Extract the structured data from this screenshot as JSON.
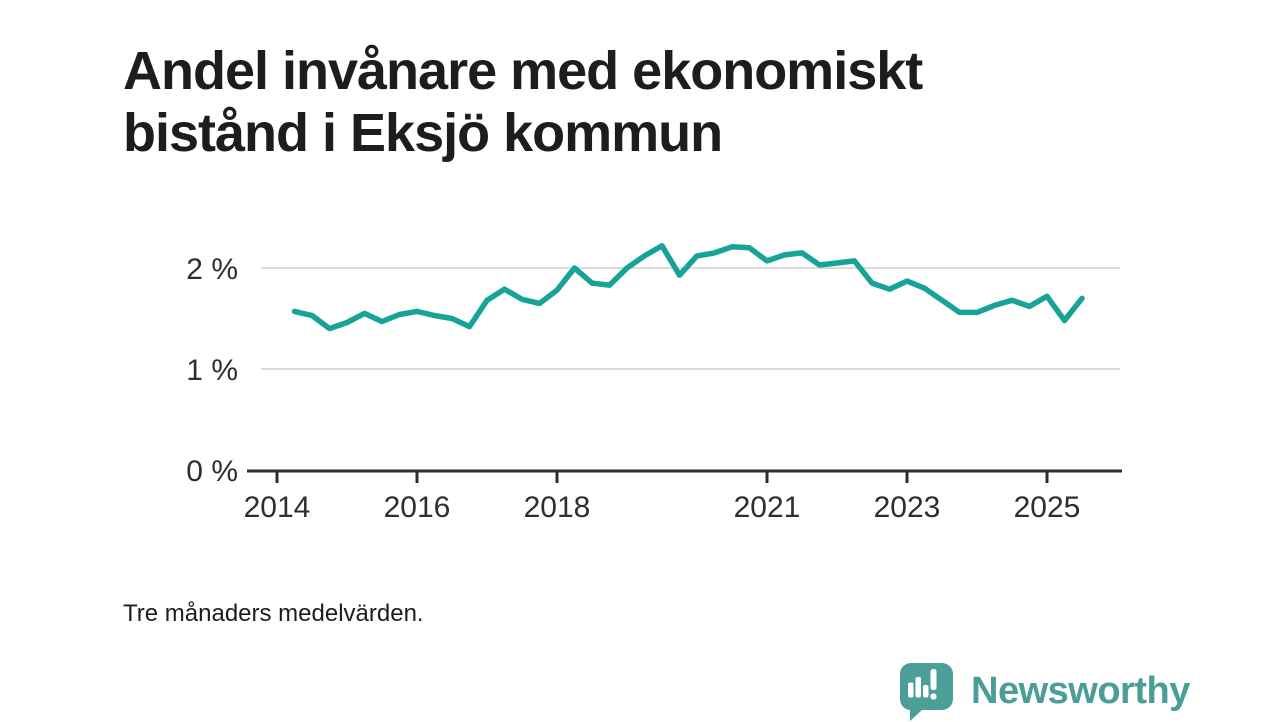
{
  "title": "Andel invånare med ekonomiskt bistånd i Eksjö kommun",
  "footnote": "Tre månaders medelvärden.",
  "branding": {
    "name": "Newsworthy",
    "icon": "newsworthy-speech-bubble-bar-chart-icon"
  },
  "colors": {
    "line": "#17a398",
    "grid": "#dcdcdc",
    "axis": "#2e2e2e",
    "text": "#1d1d1b",
    "brand": "#4c9f99",
    "background": "#ffffff"
  },
  "chart_data": {
    "type": "line",
    "title": "Andel invånare med ekonomiskt bistånd i Eksjö kommun",
    "subtitle": "Tre månaders medelvärden.",
    "unit": "%",
    "x_start": 2014.25,
    "x_step": 0.25,
    "values": [
      1.57,
      1.53,
      1.4,
      1.46,
      1.55,
      1.47,
      1.54,
      1.57,
      1.53,
      1.5,
      1.42,
      1.68,
      1.79,
      1.69,
      1.65,
      1.78,
      2.0,
      1.85,
      1.83,
      2.0,
      2.12,
      2.22,
      1.93,
      2.12,
      2.15,
      2.21,
      2.2,
      2.07,
      2.13,
      2.15,
      2.03,
      2.05,
      2.07,
      1.85,
      1.79,
      1.87,
      1.8,
      1.68,
      1.56,
      1.56,
      1.63,
      1.68,
      1.62,
      1.72,
      1.48,
      1.7
    ],
    "x_tick_years": [
      2014,
      2016,
      2018,
      2021,
      2023,
      2025
    ],
    "x_tick_labels": [
      "2014",
      "2016",
      "2018",
      "2021",
      "2023",
      "2025"
    ],
    "y_ticks": [
      {
        "value": 0,
        "label": "0 %"
      },
      {
        "value": 1,
        "label": "1 %"
      },
      {
        "value": 2,
        "label": "2 %"
      }
    ],
    "xlim": [
      2013.6,
      2026.1
    ],
    "ylim": [
      0,
      2.4
    ],
    "grid": "horizontal-only",
    "legend": "none"
  }
}
